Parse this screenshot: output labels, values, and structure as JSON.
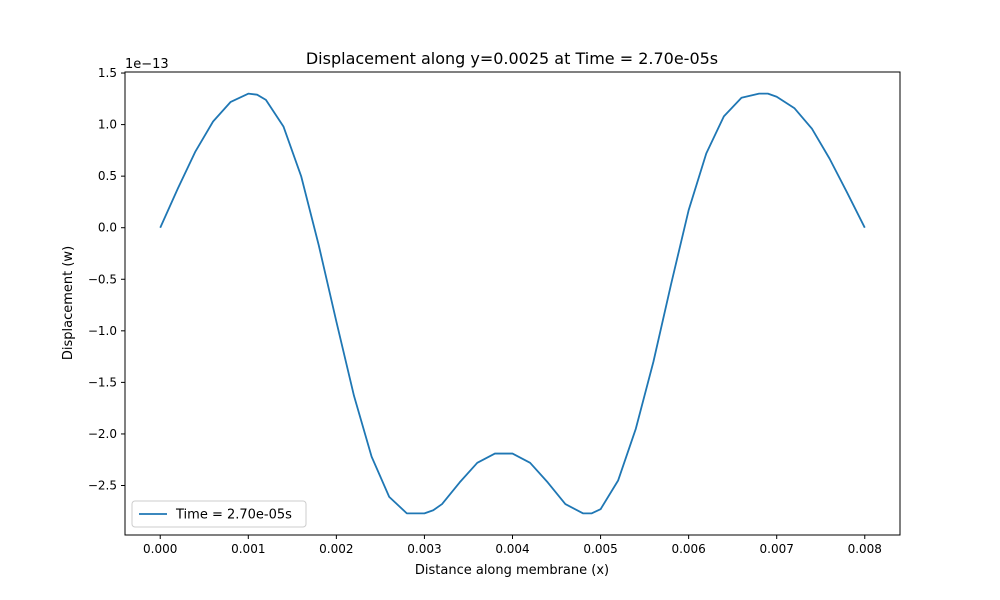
{
  "chart_data": {
    "type": "line",
    "title": "Displacement along y=0.0025 at Time = 2.70e-05s",
    "xlabel": "Distance along membrane (x)",
    "ylabel": "Displacement (w)",
    "offset_text": "1e−13",
    "xlim": [
      -0.0004,
      0.0084
    ],
    "ylim": [
      -2.98,
      1.51
    ],
    "y_scale_factor": 1e-13,
    "x_ticks": [
      0.0,
      0.001,
      0.002,
      0.003,
      0.004,
      0.005,
      0.006,
      0.007,
      0.008
    ],
    "x_tick_labels": [
      "0.000",
      "0.001",
      "0.002",
      "0.003",
      "0.004",
      "0.005",
      "0.006",
      "0.007",
      "0.008"
    ],
    "y_ticks": [
      1.5,
      1.0,
      0.5,
      0.0,
      -0.5,
      -1.0,
      -1.5,
      -2.0,
      -2.5
    ],
    "y_tick_labels": [
      "1.5",
      "1.0",
      "0.5",
      "0.0",
      "−0.5",
      "−1.0",
      "−1.5",
      "−2.0",
      "−2.5"
    ],
    "grid": false,
    "legend_position": "lower-left",
    "series": [
      {
        "name": "Time = 2.70e-05s",
        "color": "#1f77b4",
        "x": [
          0.0,
          0.0002,
          0.0004,
          0.0006,
          0.0008,
          0.001,
          0.0011,
          0.0012,
          0.0014,
          0.0016,
          0.0018,
          0.002,
          0.0022,
          0.0024,
          0.0026,
          0.0028,
          0.003,
          0.0031,
          0.0032,
          0.0034,
          0.0036,
          0.0038,
          0.004,
          0.0042,
          0.0044,
          0.0046,
          0.0048,
          0.0049,
          0.005,
          0.0052,
          0.0054,
          0.0056,
          0.0058,
          0.006,
          0.0062,
          0.0064,
          0.0066,
          0.0068,
          0.0069,
          0.007,
          0.0072,
          0.0074,
          0.0076,
          0.0078,
          0.008
        ],
        "values": [
          0.0,
          0.38,
          0.74,
          1.03,
          1.22,
          1.3,
          1.29,
          1.24,
          0.98,
          0.5,
          -0.17,
          -0.91,
          -1.63,
          -2.22,
          -2.61,
          -2.77,
          -2.77,
          -2.74,
          -2.68,
          -2.47,
          -2.28,
          -2.19,
          -2.19,
          -2.28,
          -2.47,
          -2.68,
          -2.77,
          -2.77,
          -2.73,
          -2.45,
          -1.95,
          -1.3,
          -0.55,
          0.17,
          0.72,
          1.08,
          1.26,
          1.3,
          1.3,
          1.27,
          1.16,
          0.96,
          0.67,
          0.34,
          0.0
        ]
      }
    ]
  }
}
